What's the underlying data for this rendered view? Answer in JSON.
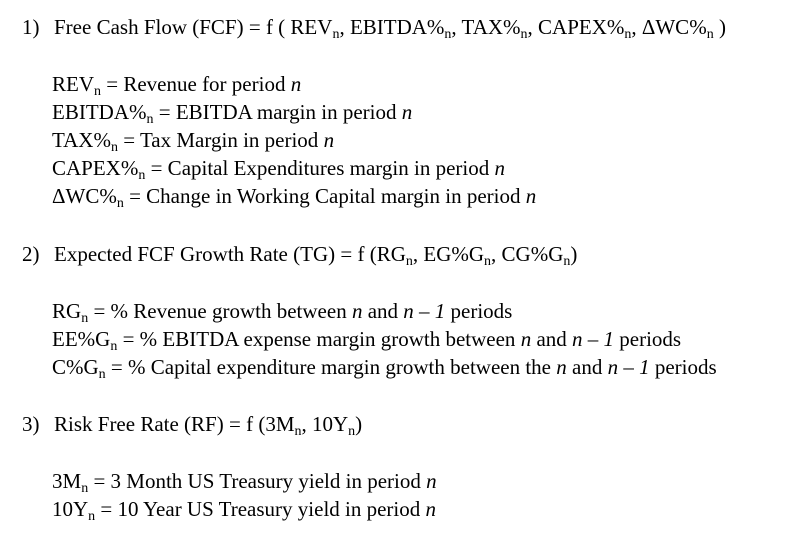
{
  "sections": [
    {
      "number": "1)",
      "heading": [
        {
          "t": "Free Cash Flow (FCF) = f ( REV"
        },
        {
          "sub": "n"
        },
        {
          "t": ", EBITDA%"
        },
        {
          "sub": "n"
        },
        {
          "t": ", TAX%"
        },
        {
          "sub": "n"
        },
        {
          "t": ", CAPEX%"
        },
        {
          "sub": "n"
        },
        {
          "t": ", ΔWC%"
        },
        {
          "sub": "n"
        },
        {
          "t": " )"
        }
      ],
      "definitions": [
        [
          {
            "t": "REV"
          },
          {
            "sub": "n"
          },
          {
            "t": " = Revenue for period "
          },
          {
            "i": "n"
          }
        ],
        [
          {
            "t": "EBITDA%"
          },
          {
            "sub": "n"
          },
          {
            "t": "  = EBITDA margin in period "
          },
          {
            "i": "n"
          }
        ],
        [
          {
            "t": "TAX%"
          },
          {
            "sub": "n"
          },
          {
            "t": "  = Tax Margin in period "
          },
          {
            "i": "n"
          }
        ],
        [
          {
            "t": "CAPEX%"
          },
          {
            "sub": "n"
          },
          {
            "t": " = Capital Expenditures margin in period "
          },
          {
            "i": "n"
          }
        ],
        [
          {
            "t": "ΔWC%"
          },
          {
            "sub": "n"
          },
          {
            "t": " = Change in Working Capital margin in period "
          },
          {
            "i": "n"
          }
        ]
      ]
    },
    {
      "number": "2)",
      "heading": [
        {
          "t": "Expected FCF Growth Rate (TG) = f (RG"
        },
        {
          "sub": "n"
        },
        {
          "t": ", EG%G"
        },
        {
          "sub": "n"
        },
        {
          "t": ", CG%G"
        },
        {
          "sub": "n"
        },
        {
          "t": ")"
        }
      ],
      "definitions": [
        [
          {
            "t": "RG"
          },
          {
            "sub": "n"
          },
          {
            "t": " = % Revenue growth between "
          },
          {
            "i": "n"
          },
          {
            "t": " and "
          },
          {
            "i": "n – 1"
          },
          {
            "t": " periods"
          }
        ],
        [
          {
            "t": "EE%G"
          },
          {
            "sub": "n"
          },
          {
            "t": " = % EBITDA expense margin growth between "
          },
          {
            "i": "n"
          },
          {
            "t": " and "
          },
          {
            "i": "n – 1"
          },
          {
            "t": " periods"
          }
        ],
        [
          {
            "t": "C%G"
          },
          {
            "sub": "n"
          },
          {
            "t": " = % Capital expenditure margin growth between the "
          },
          {
            "i": "n"
          },
          {
            "t": " and "
          },
          {
            "i": "n – 1"
          },
          {
            "t": " periods"
          }
        ]
      ]
    },
    {
      "number": "3)",
      "heading": [
        {
          "t": "Risk Free Rate (RF) = f (3M"
        },
        {
          "sub": "n"
        },
        {
          "t": ", 10Y"
        },
        {
          "sub": "n"
        },
        {
          "t": ")"
        }
      ],
      "definitions": [
        [
          {
            "t": "3M"
          },
          {
            "sub": "n"
          },
          {
            "t": " = 3 Month US Treasury yield in period "
          },
          {
            "i": "n"
          }
        ],
        [
          {
            "t": "10Y"
          },
          {
            "sub": "n"
          },
          {
            "t": " = 10 Year US Treasury yield in period "
          },
          {
            "i": "n"
          }
        ]
      ]
    }
  ]
}
